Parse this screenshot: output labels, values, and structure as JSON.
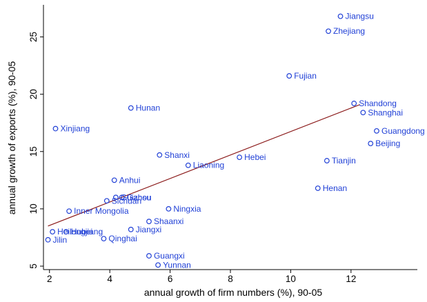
{
  "chart_data": {
    "type": "scatter",
    "xlabel": "annual growth of firm numbers (%), 90-05",
    "ylabel": "annual growth of exports (%), 90-05",
    "xlim": [
      1.8,
      14.2
    ],
    "ylim": [
      4.7,
      27.8
    ],
    "xticks": [
      2,
      4,
      6,
      8,
      10,
      12
    ],
    "yticks": [
      5,
      10,
      15,
      20,
      25
    ],
    "grid": false,
    "colors": {
      "marker": "#1f3fd6",
      "label": "#1f3fd6",
      "fit_line": "#8b1a1a",
      "axis": "#000000"
    },
    "points": [
      {
        "label": "Jiangsu",
        "x": 11.65,
        "y": 26.8
      },
      {
        "label": "Zhejiang",
        "x": 11.25,
        "y": 25.5
      },
      {
        "label": "Fujian",
        "x": 9.95,
        "y": 21.6
      },
      {
        "label": "Shandong",
        "x": 12.1,
        "y": 19.2
      },
      {
        "label": "Shanghai",
        "x": 12.4,
        "y": 18.4
      },
      {
        "label": "Hunan",
        "x": 4.7,
        "y": 18.8
      },
      {
        "label": "Xinjiang",
        "x": 2.2,
        "y": 17.0
      },
      {
        "label": "Guangdong",
        "x": 12.85,
        "y": 16.8
      },
      {
        "label": "Beijing",
        "x": 12.65,
        "y": 15.7
      },
      {
        "label": "Shanxi",
        "x": 5.65,
        "y": 14.7
      },
      {
        "label": "Hebei",
        "x": 8.3,
        "y": 14.5
      },
      {
        "label": "Liaoning",
        "x": 6.6,
        "y": 13.8
      },
      {
        "label": "Tianjin",
        "x": 11.2,
        "y": 14.2
      },
      {
        "label": "Anhui",
        "x": 4.15,
        "y": 12.5
      },
      {
        "label": "Henan",
        "x": 10.9,
        "y": 11.8
      },
      {
        "label": "Guizhou",
        "x": 4.2,
        "y": 11.0
      },
      {
        "label": "Gansu",
        "x": 4.4,
        "y": 11.0
      },
      {
        "label": "Sichuan",
        "x": 3.9,
        "y": 10.7
      },
      {
        "label": "Inner Mongolia",
        "x": 2.65,
        "y": 9.8
      },
      {
        "label": "Ningxia",
        "x": 5.95,
        "y": 10.0
      },
      {
        "label": "Shaanxi",
        "x": 5.3,
        "y": 8.9
      },
      {
        "label": "Heilongjiang",
        "x": 2.1,
        "y": 8.0
      },
      {
        "label": "Hubei",
        "x": 2.55,
        "y": 8.0
      },
      {
        "label": "Jiangxi",
        "x": 4.7,
        "y": 8.2
      },
      {
        "label": "Qinghai",
        "x": 3.8,
        "y": 7.4
      },
      {
        "label": "Jilin",
        "x": 1.95,
        "y": 7.3
      },
      {
        "label": "Guangxi",
        "x": 5.3,
        "y": 5.9
      },
      {
        "label": "Yunnan",
        "x": 5.6,
        "y": 5.1
      }
    ],
    "fit_line": {
      "x": [
        1.95,
        12.3
      ],
      "y": [
        8.5,
        19.1
      ]
    }
  }
}
